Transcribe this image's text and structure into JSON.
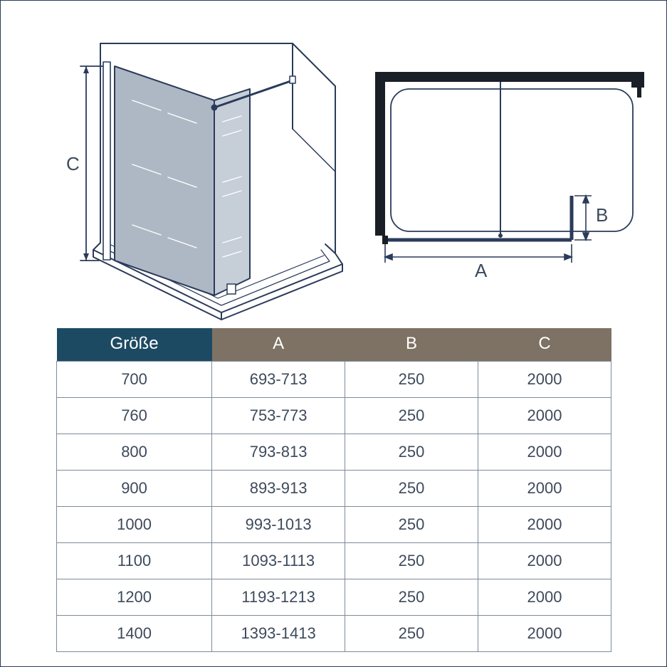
{
  "diagram": {
    "labels": {
      "a": "A",
      "b": "B",
      "c": "C"
    },
    "colors": {
      "line": "#2a3b5a",
      "lineThin": "#3d4a5c",
      "glass": "#aeb8c4",
      "glassLight": "#c6ced8",
      "topBlack": "#1a1f27",
      "white": "#ffffff",
      "text": "#3d4a5c"
    }
  },
  "table": {
    "columns": [
      "Größe",
      "A",
      "B",
      "C"
    ],
    "header_colors": [
      "#1d4a63",
      "#7d7263",
      "#7d7263",
      "#7d7263"
    ],
    "header_text_color": "#ffffff",
    "cell_border_color": "#7f8a99",
    "cell_text_color": "#3d4a5c",
    "font_size_header": 24,
    "font_size_cell": 22,
    "rows": [
      [
        "700",
        "693-713",
        "250",
        "2000"
      ],
      [
        "760",
        "753-773",
        "250",
        "2000"
      ],
      [
        "800",
        "793-813",
        "250",
        "2000"
      ],
      [
        "900",
        "893-913",
        "250",
        "2000"
      ],
      [
        "1000",
        "993-1013",
        "250",
        "2000"
      ],
      [
        "1100",
        "1093-1113",
        "250",
        "2000"
      ],
      [
        "1200",
        "1193-1213",
        "250",
        "2000"
      ],
      [
        "1400",
        "1393-1413",
        "250",
        "2000"
      ]
    ]
  }
}
